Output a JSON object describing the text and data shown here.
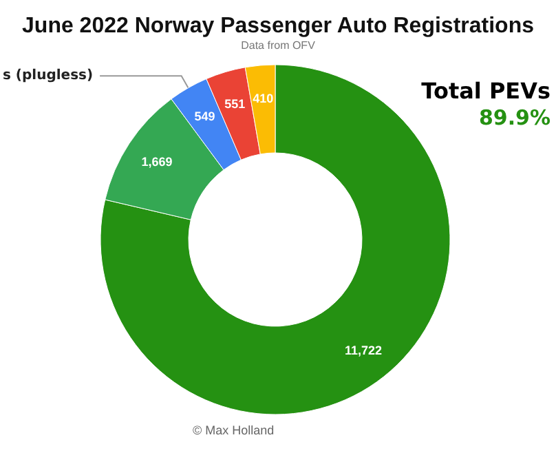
{
  "chart_data": {
    "type": "donut",
    "title": "June 2022 Norway Passenger Auto Registrations",
    "subtitle": "Data from OFV",
    "categories": [
      null,
      null,
      "s (plugless)",
      null,
      null
    ],
    "values": [
      11722,
      1669,
      549,
      551,
      410
    ],
    "colors": [
      "#259112",
      "#34a853",
      "#4285f4",
      "#ea4335",
      "#fbbc04"
    ],
    "value_labels": [
      "11,722",
      "1,669",
      "549",
      "551",
      "410"
    ],
    "legend": false,
    "annotations": [
      "Total PEVs",
      "89.9%",
      "© Max Holland"
    ]
  }
}
